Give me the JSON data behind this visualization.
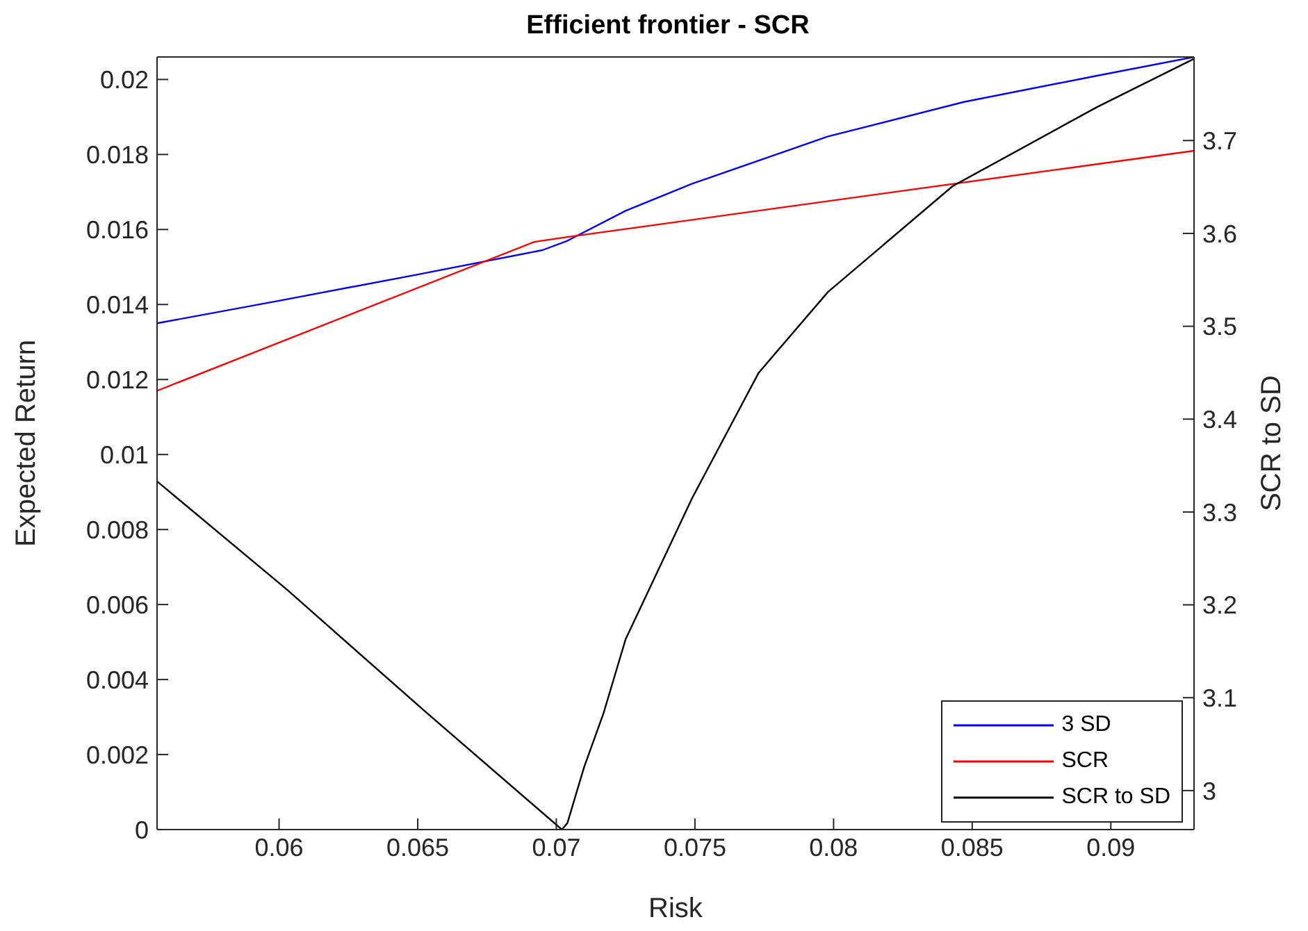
{
  "chart_data": {
    "type": "line",
    "title": "Efficient frontier - SCR",
    "xlabel": "Risk",
    "ylabel": "Expected Return",
    "y2label": "SCR to SD",
    "xlim": [
      0.0556,
      0.093
    ],
    "xticks": [
      0.06,
      0.065,
      0.07,
      0.075,
      0.08,
      0.085,
      0.09
    ],
    "ylim": [
      0,
      0.0206
    ],
    "yticks": [
      0,
      0.002,
      0.004,
      0.006,
      0.008,
      0.01,
      0.012,
      0.014,
      0.016,
      0.018,
      0.02
    ],
    "y2lim": [
      2.958,
      3.79
    ],
    "y2ticks": [
      3,
      3.1,
      3.2,
      3.3,
      3.4,
      3.5,
      3.6,
      3.7
    ],
    "legend": "bottom right",
    "marker": "none",
    "line_style": "solid",
    "series": [
      {
        "name": "3 SD",
        "color": "#0000ff",
        "x": [
          0.0556,
          0.06,
          0.065,
          0.0695,
          0.0704,
          0.0725,
          0.0749,
          0.0798,
          0.0847,
          0.0895,
          0.093
        ],
        "values": [
          0.0135,
          0.0141,
          0.0148,
          0.01545,
          0.0157,
          0.0165,
          0.01722,
          0.01848,
          0.0194,
          0.0201,
          0.0206
        ]
      },
      {
        "name": "SCR",
        "color": "#ff0000",
        "x": [
          0.0556,
          0.0692,
          0.0704,
          0.093
        ],
        "values": [
          0.0117,
          0.01567,
          0.0158,
          0.0181
        ]
      },
      {
        "name": "SCR to SD",
        "color": "#000000",
        "axis": "y2",
        "x": [
          0.0556,
          0.0603,
          0.0652,
          0.0702,
          0.0704,
          0.071,
          0.0717,
          0.0725,
          0.0749,
          0.0773,
          0.0798,
          0.0843,
          0.0895,
          0.093
        ],
        "values": [
          3.333,
          3.216,
          3.087,
          2.958,
          2.965,
          3.025,
          3.083,
          3.163,
          3.315,
          3.45,
          3.537,
          3.651,
          3.736,
          3.788
        ]
      }
    ]
  }
}
